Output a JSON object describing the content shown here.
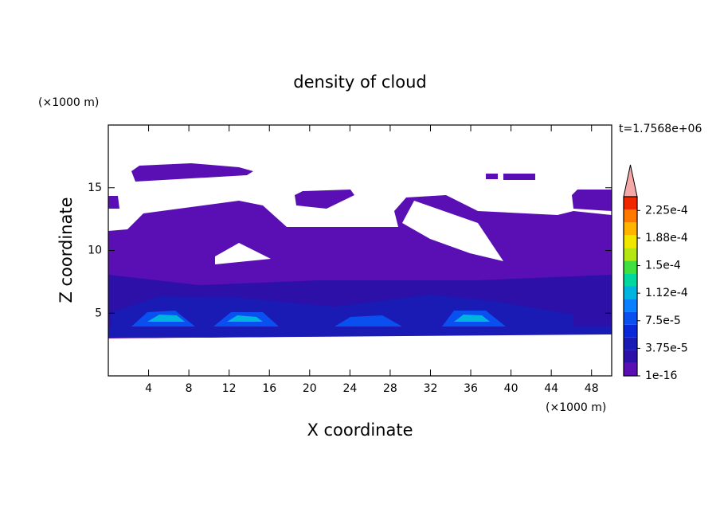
{
  "chart_data": {
    "type": "contour",
    "title": "density of cloud",
    "xlabel": "X coordinate",
    "ylabel": "Z coordinate",
    "xunit": "(×1000 m)",
    "yunit": "(×1000 m)",
    "annotation": "t=1.7568e+06",
    "xlim": [
      0,
      50
    ],
    "ylim": [
      0,
      20
    ],
    "xticks": [
      4,
      8,
      12,
      16,
      20,
      24,
      28,
      32,
      36,
      40,
      44,
      48
    ],
    "yticks": [
      5,
      10,
      15
    ],
    "clim": [
      1e-16,
      0.00024375
    ],
    "cticks": [
      {
        "value": 1e-16,
        "label": "1e-16"
      },
      {
        "value": 3.75e-05,
        "label": "3.75e-5"
      },
      {
        "value": 7.5e-05,
        "label": "7.5e-5"
      },
      {
        "value": 0.0001125,
        "label": "1.12e-4"
      },
      {
        "value": 0.00015,
        "label": "1.5e-4"
      },
      {
        "value": 0.0001875,
        "label": "1.88e-4"
      },
      {
        "value": 0.000225,
        "label": "2.25e-4"
      }
    ],
    "colors": [
      "#5a0fb4",
      "#2c10a8",
      "#1a1ab4",
      "#0a28d8",
      "#0a50f0",
      "#0a80ff",
      "#00b4e0",
      "#00d8a0",
      "#40e040",
      "#b4e614",
      "#f0e600",
      "#ffb400",
      "#ff7800",
      "#f02800"
    ],
    "extend_color": "#f4a8a8"
  }
}
